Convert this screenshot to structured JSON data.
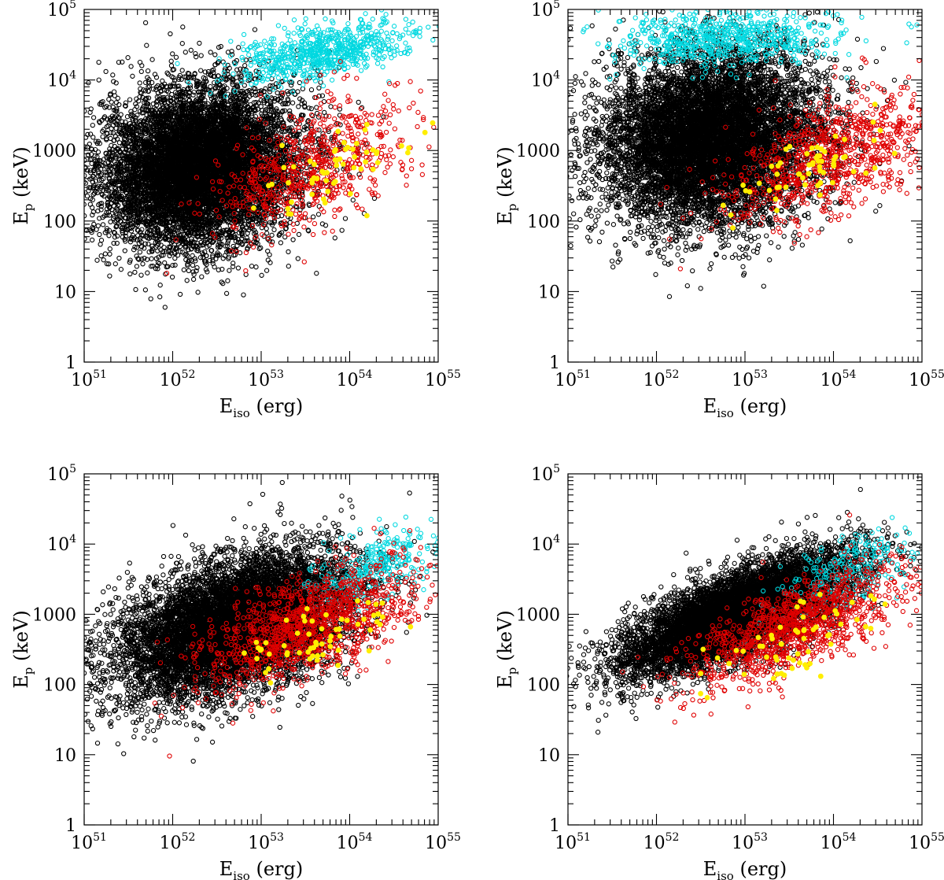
{
  "figure": {
    "layout": "2x2 grid of scatter panels (identical axes)"
  },
  "colors": {
    "black_points": "#000000",
    "red_points": "#e00000",
    "cyan_points": "#00d8e0",
    "yellow_points": "#ffee00"
  },
  "chart_data": [
    {
      "panel": "top-left",
      "type": "scatter",
      "xlabel": "E",
      "xlabel_sub": "iso",
      "xlabel_unit": " (erg)",
      "ylabel": "E",
      "ylabel_sub": "p",
      "ylabel_unit": " (keV)",
      "xscale": "log",
      "yscale": "log",
      "xlim": [
        1e+51,
        1e+55
      ],
      "ylim": [
        1,
        100000.0
      ],
      "x_tick_labels": [
        {
          "base": "10",
          "exp": "51"
        },
        {
          "base": "10",
          "exp": "52"
        },
        {
          "base": "10",
          "exp": "53"
        },
        {
          "base": "10",
          "exp": "54"
        },
        {
          "base": "10",
          "exp": "55"
        }
      ],
      "y_tick_labels": [
        "1",
        "10",
        "100",
        "1000",
        {
          "base": "10",
          "exp": "4"
        },
        {
          "base": "10",
          "exp": "5"
        }
      ],
      "series": [
        {
          "color_key": "black_points",
          "marker": "open-circle",
          "approx_count": 9000,
          "center": [
            2e+52,
            600
          ],
          "spread_logx": 0.55,
          "spread_logy": 0.55,
          "slope": 0.15
        },
        {
          "color_key": "cyan_points",
          "marker": "open-circle",
          "approx_count": 700,
          "center": [
            5e+53,
            25000
          ],
          "spread_logx": 0.5,
          "spread_logy": 0.18,
          "slope": 0.2
        },
        {
          "color_key": "red_points",
          "marker": "open-circle",
          "approx_count": 700,
          "center": [
            4e+53,
            600
          ],
          "spread_logx": 0.55,
          "spread_logy": 0.4,
          "slope": 0.45
        },
        {
          "color_key": "yellow_points",
          "marker": "filled-circle",
          "approx_count": 60,
          "center": [
            5e+53,
            500
          ],
          "spread_logx": 0.5,
          "spread_logy": 0.25,
          "slope": 0.5
        }
      ]
    },
    {
      "panel": "top-right",
      "type": "scatter",
      "xlabel": "E",
      "xlabel_sub": "iso",
      "xlabel_unit": " (erg)",
      "ylabel": "E",
      "ylabel_sub": "p",
      "ylabel_unit": " (keV)",
      "xscale": "log",
      "yscale": "log",
      "xlim": [
        1e+51,
        1e+55
      ],
      "ylim": [
        1,
        100000.0
      ],
      "x_tick_labels": [
        {
          "base": "10",
          "exp": "51"
        },
        {
          "base": "10",
          "exp": "52"
        },
        {
          "base": "10",
          "exp": "53"
        },
        {
          "base": "10",
          "exp": "54"
        },
        {
          "base": "10",
          "exp": "55"
        }
      ],
      "y_tick_labels": [
        "1",
        "10",
        "100",
        "1000",
        {
          "base": "10",
          "exp": "4"
        },
        {
          "base": "10",
          "exp": "5"
        }
      ],
      "series": [
        {
          "color_key": "black_points",
          "marker": "open-circle",
          "approx_count": 9000,
          "center": [
            4e+52,
            1500
          ],
          "spread_logx": 0.6,
          "spread_logy": 0.6,
          "slope": 0.1
        },
        {
          "color_key": "cyan_points",
          "marker": "open-circle",
          "approx_count": 700,
          "center": [
            6e+52,
            40000
          ],
          "spread_logx": 0.6,
          "spread_logy": 0.2,
          "slope": 0.05
        },
        {
          "color_key": "red_points",
          "marker": "open-circle",
          "approx_count": 900,
          "center": [
            1e+54,
            800
          ],
          "spread_logx": 0.6,
          "spread_logy": 0.4,
          "slope": 0.4
        },
        {
          "color_key": "yellow_points",
          "marker": "filled-circle",
          "approx_count": 60,
          "center": [
            5e+53,
            500
          ],
          "spread_logx": 0.5,
          "spread_logy": 0.25,
          "slope": 0.5
        }
      ]
    },
    {
      "panel": "bottom-left",
      "type": "scatter",
      "xlabel": "E",
      "xlabel_sub": "iso",
      "xlabel_unit": " (erg)",
      "ylabel": "E",
      "ylabel_sub": "p",
      "ylabel_unit": " (keV)",
      "xscale": "log",
      "yscale": "log",
      "xlim": [
        1e+51,
        1e+55
      ],
      "ylim": [
        1,
        100000.0
      ],
      "x_tick_labels": [
        {
          "base": "10",
          "exp": "51"
        },
        {
          "base": "10",
          "exp": "52"
        },
        {
          "base": "10",
          "exp": "53"
        },
        {
          "base": "10",
          "exp": "54"
        },
        {
          "base": "10",
          "exp": "55"
        }
      ],
      "y_tick_labels": [
        "1",
        "10",
        "100",
        "1000",
        {
          "base": "10",
          "exp": "4"
        },
        {
          "base": "10",
          "exp": "5"
        }
      ],
      "series": [
        {
          "color_key": "black_points",
          "marker": "open-circle",
          "approx_count": 9000,
          "center": [
            5e+52,
            700
          ],
          "spread_logx": 0.65,
          "spread_logy": 0.45,
          "slope": 0.35
        },
        {
          "color_key": "cyan_points",
          "marker": "open-circle",
          "approx_count": 300,
          "center": [
            2e+54,
            5000
          ],
          "spread_logx": 0.35,
          "spread_logy": 0.25,
          "slope": 0.4
        },
        {
          "color_key": "red_points",
          "marker": "open-circle",
          "approx_count": 1200,
          "center": [
            4e+53,
            700
          ],
          "spread_logx": 0.6,
          "spread_logy": 0.35,
          "slope": 0.45
        },
        {
          "color_key": "yellow_points",
          "marker": "filled-circle",
          "approx_count": 60,
          "center": [
            5e+53,
            500
          ],
          "spread_logx": 0.5,
          "spread_logy": 0.25,
          "slope": 0.5
        }
      ]
    },
    {
      "panel": "bottom-right",
      "type": "scatter",
      "xlabel": "E",
      "xlabel_sub": "iso",
      "xlabel_unit": " (erg)",
      "ylabel": "E",
      "ylabel_sub": "p",
      "ylabel_unit": " (keV)",
      "xscale": "log",
      "yscale": "log",
      "xlim": [
        1e+51,
        1e+55
      ],
      "ylim": [
        1,
        100000.0
      ],
      "x_tick_labels": [
        {
          "base": "10",
          "exp": "51"
        },
        {
          "base": "10",
          "exp": "52"
        },
        {
          "base": "10",
          "exp": "53"
        },
        {
          "base": "10",
          "exp": "54"
        },
        {
          "base": "10",
          "exp": "55"
        }
      ],
      "y_tick_labels": [
        "1",
        "10",
        "100",
        "1000",
        {
          "base": "10",
          "exp": "4"
        },
        {
          "base": "10",
          "exp": "5"
        }
      ],
      "series": [
        {
          "color_key": "black_points",
          "marker": "open-circle",
          "approx_count": 8000,
          "center": [
            8e+52,
            1000
          ],
          "spread_logx": 0.65,
          "spread_logy": 0.3,
          "slope": 0.5
        },
        {
          "color_key": "cyan_points",
          "marker": "open-circle",
          "approx_count": 250,
          "center": [
            1.5e+54,
            4000
          ],
          "spread_logx": 0.4,
          "spread_logy": 0.25,
          "slope": 0.45
        },
        {
          "color_key": "red_points",
          "marker": "open-circle",
          "approx_count": 1200,
          "center": [
            4e+53,
            700
          ],
          "spread_logx": 0.6,
          "spread_logy": 0.3,
          "slope": 0.5
        },
        {
          "color_key": "yellow_points",
          "marker": "filled-circle",
          "approx_count": 60,
          "center": [
            5e+53,
            500
          ],
          "spread_logx": 0.5,
          "spread_logy": 0.25,
          "slope": 0.5
        }
      ]
    }
  ]
}
